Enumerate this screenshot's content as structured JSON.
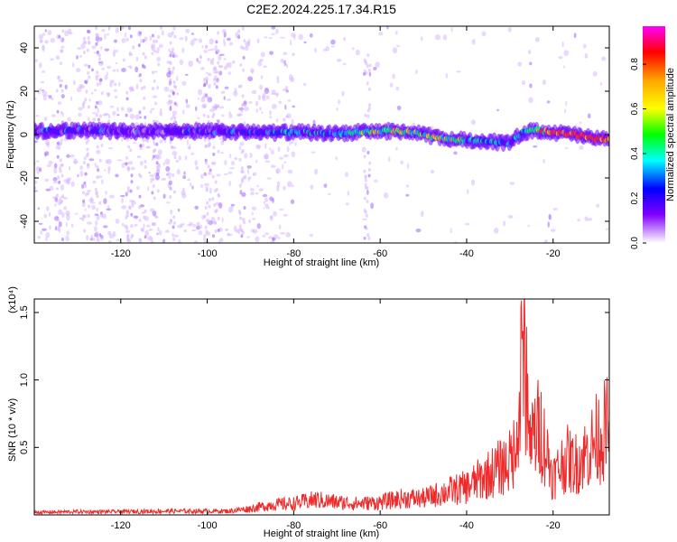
{
  "title": "C2E2.2024.225.17.34.R15",
  "colors": {
    "band": [
      "#d7b8ff",
      "#a066ff",
      "#6a00ff",
      "#2020ff",
      "#00c8ff",
      "#00ff80",
      "#ffd000",
      "#ff3030"
    ],
    "snr_line": "#ee2a2a",
    "colormap": [
      "#ff00ff",
      "#ff0000",
      "#ffa500",
      "#ffff00",
      "#00ff00",
      "#00ffff",
      "#0000ff",
      "#8000ff",
      "#ffffff"
    ]
  },
  "chart_data": [
    {
      "type": "heatmap",
      "xlabel": "Height of straight line (km)",
      "ylabel": "Frequency (Hz)",
      "xlim": [
        -140,
        -7
      ],
      "ylim": [
        -50,
        50
      ],
      "xticks": [
        -120,
        -100,
        -80,
        -60,
        -40,
        -20
      ],
      "yticks": [
        -40,
        -20,
        0,
        20,
        40
      ],
      "colorbar": {
        "label": "Normalized spectral amplitude",
        "range": [
          0,
          0.97
        ],
        "ticks": [
          "0.0",
          "0.2",
          "0.4",
          "0.6",
          "0.8"
        ],
        "tick_values": [
          0.0,
          0.2,
          0.4,
          0.6,
          0.8
        ]
      },
      "ridge": {
        "x": [
          -140,
          -130,
          -120,
          -110,
          -100,
          -90,
          -80,
          -70,
          -62,
          -55,
          -50,
          -45,
          -40,
          -35,
          -30,
          -27,
          -24,
          -20,
          -15,
          -10,
          -7
        ],
        "freq_hz": [
          1.5,
          2,
          1.5,
          1.5,
          1.5,
          1,
          1,
          0.5,
          1.5,
          1.5,
          0,
          -2,
          -2.5,
          -3,
          -4,
          1,
          2,
          1,
          0,
          -2,
          -2
        ],
        "amplitude": [
          0.3,
          0.32,
          0.3,
          0.28,
          0.3,
          0.35,
          0.45,
          0.4,
          0.6,
          0.7,
          0.6,
          0.65,
          0.5,
          0.55,
          0.4,
          0.5,
          0.7,
          0.9,
          0.95,
          0.95,
          0.8
        ]
      }
    },
    {
      "type": "line",
      "xlabel": "Height of straight line (km)",
      "ylabel": "SNR (10 * v/v)",
      "multiplier": "(x10⁴)",
      "xlim": [
        -140,
        -7
      ],
      "ylim": [
        0,
        1.6
      ],
      "xticks": [
        -120,
        -100,
        -80,
        -60,
        -40,
        -20
      ],
      "yticks": [
        "0.5",
        "1.0",
        "1.5"
      ],
      "ytick_values": [
        0.5,
        1.0,
        1.5
      ],
      "series": [
        {
          "x": [
            -140,
            -130,
            -120,
            -110,
            -100,
            -95,
            -90,
            -85,
            -80,
            -75,
            -70,
            -65,
            -60,
            -55,
            -50,
            -45,
            -40,
            -37,
            -35,
            -32,
            -30,
            -28,
            -27,
            -25,
            -23,
            -20,
            -17,
            -15,
            -12,
            -10,
            -7
          ],
          "values": [
            0.02,
            0.025,
            0.025,
            0.03,
            0.03,
            0.03,
            0.05,
            0.08,
            0.09,
            0.12,
            0.1,
            0.09,
            0.1,
            0.13,
            0.13,
            0.18,
            0.22,
            0.28,
            0.32,
            0.38,
            0.42,
            0.6,
            1.45,
            0.6,
            0.7,
            0.3,
            0.45,
            0.4,
            0.5,
            0.6,
            0.7
          ]
        }
      ]
    }
  ]
}
